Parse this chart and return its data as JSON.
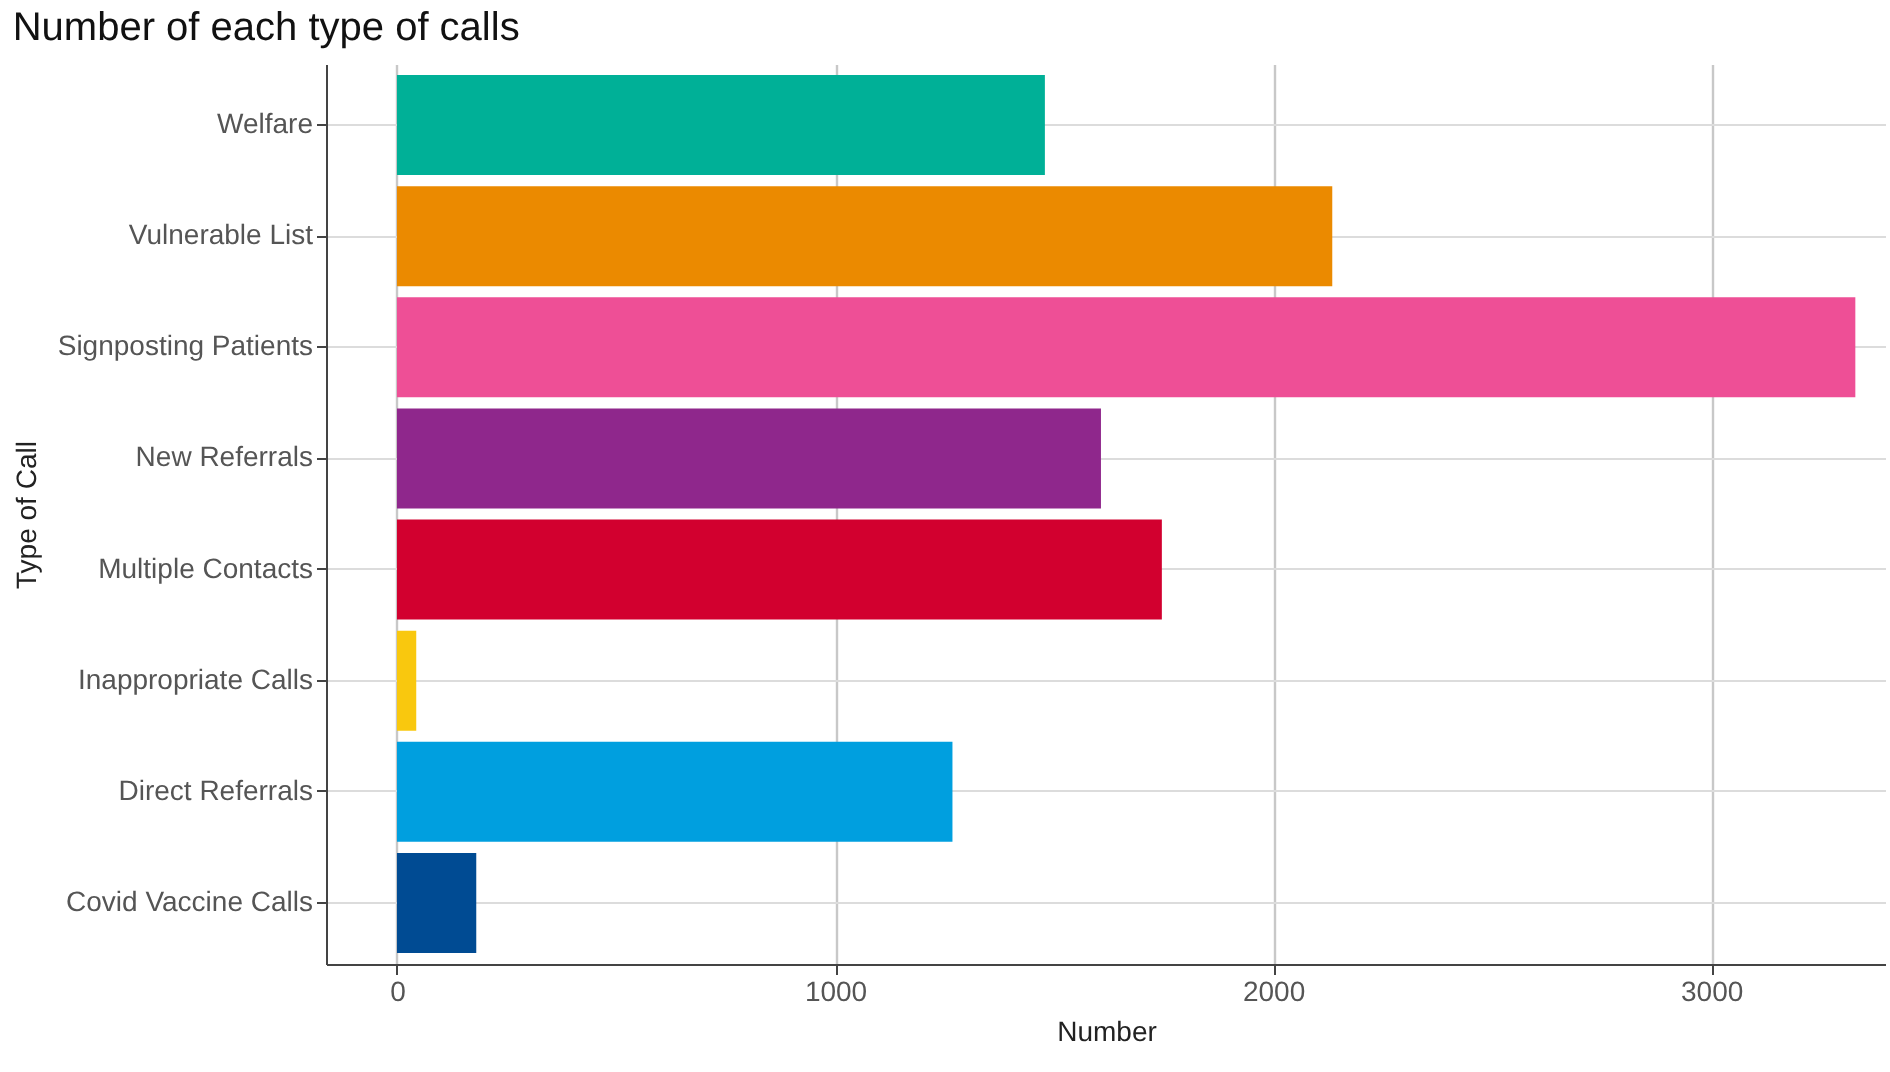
{
  "chart_data": {
    "type": "bar",
    "orientation": "horizontal",
    "title": "Number of each type of calls",
    "xlabel": "Number",
    "ylabel": "Type of Call",
    "categories": [
      "Welfare",
      "Vulnerable List",
      "Signposting Patients",
      "New Referrals",
      "Multiple Contacts",
      "Inappropriate Calls",
      "Direct Referrals",
      "Covid Vaccine Calls"
    ],
    "values": [
      1479,
      2135,
      3329,
      1607,
      1746,
      44,
      1268,
      181
    ],
    "colors": [
      "#00b097",
      "#eb8a00",
      "#ee4f96",
      "#8f278c",
      "#d2002f",
      "#f9c80e",
      "#009fdf",
      "#004b93"
    ],
    "xlim": [
      -162,
      3399
    ],
    "xticks": [
      0,
      1000,
      2000,
      3000
    ],
    "grid": true,
    "legend": false
  }
}
